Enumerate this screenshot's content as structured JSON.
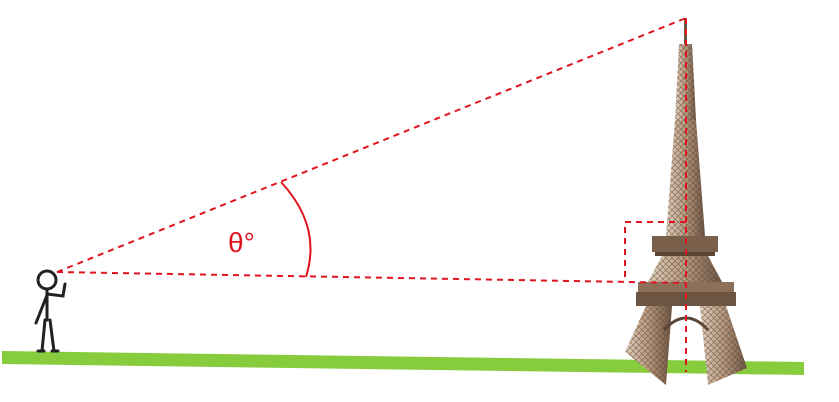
{
  "diagram": {
    "angle_label": "θ°",
    "colors": {
      "sight_lines": "#e0141e",
      "ground": "#86cc3c",
      "person": "#222222",
      "tower_light": "#cbb6a0",
      "tower_dark": "#5b4535"
    },
    "elements": {
      "observer": "stick-figure-person",
      "landmark": "eiffel-tower",
      "angle_marker": "angle-arc",
      "right_angle_marker": "right-angle-square"
    }
  }
}
